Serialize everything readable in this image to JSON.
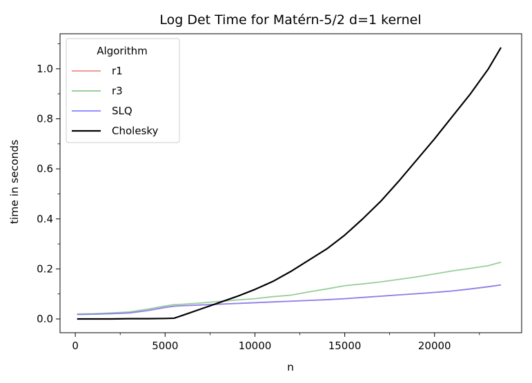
{
  "chart_data": {
    "type": "line",
    "title": "Log Det Time for Matérn-5/2 d=1 kernel",
    "xlabel": "n",
    "ylabel": "time in seconds",
    "xlim": [
      -850,
      24850
    ],
    "ylim": [
      -0.055,
      1.14
    ],
    "xticks": [
      0,
      5000,
      10000,
      15000,
      20000
    ],
    "yticks": [
      0.0,
      0.2,
      0.4,
      0.6,
      0.8,
      1.0
    ],
    "xticks_minor": [
      2500,
      7500,
      12500,
      17500,
      22500
    ],
    "yticks_minor": [
      0.1,
      0.3,
      0.5,
      0.7,
      0.9,
      1.1
    ],
    "grid": false,
    "legend": {
      "title": "Algorithm",
      "placement": "upper left"
    },
    "x": [
      100,
      1000,
      2000,
      3000,
      4000,
      5000,
      5500,
      6000,
      7000,
      8000,
      9000,
      10000,
      11000,
      12000,
      13000,
      14000,
      15000,
      16000,
      17000,
      18000,
      19000,
      20000,
      21000,
      22000,
      23000,
      23700
    ],
    "series": [
      {
        "name": "r1",
        "color": "#f08080",
        "values": [
          0.018,
          0.019,
          0.021,
          0.024,
          0.033,
          0.046,
          0.051,
          0.053,
          0.056,
          0.059,
          0.062,
          0.065,
          0.068,
          0.071,
          0.074,
          0.077,
          0.081,
          0.086,
          0.091,
          0.096,
          0.101,
          0.106,
          0.112,
          0.12,
          0.129,
          0.136
        ]
      },
      {
        "name": "r3",
        "color": "#80c080",
        "values": [
          0.02,
          0.021,
          0.024,
          0.028,
          0.039,
          0.052,
          0.057,
          0.059,
          0.064,
          0.07,
          0.076,
          0.081,
          0.089,
          0.095,
          0.108,
          0.12,
          0.133,
          0.14,
          0.148,
          0.158,
          0.168,
          0.18,
          0.192,
          0.202,
          0.213,
          0.227
        ]
      },
      {
        "name": "SLQ",
        "color": "#7b7bff",
        "values": [
          0.018,
          0.019,
          0.021,
          0.024,
          0.033,
          0.046,
          0.051,
          0.053,
          0.056,
          0.059,
          0.062,
          0.065,
          0.068,
          0.071,
          0.074,
          0.077,
          0.081,
          0.086,
          0.091,
          0.096,
          0.101,
          0.106,
          0.112,
          0.12,
          0.129,
          0.136
        ]
      },
      {
        "name": "Cholesky",
        "color": "#000000",
        "values": [
          0.0,
          0.0,
          0.0,
          0.001,
          0.001,
          0.002,
          0.003,
          0.015,
          0.04,
          0.065,
          0.09,
          0.118,
          0.15,
          0.19,
          0.235,
          0.28,
          0.335,
          0.4,
          0.47,
          0.55,
          0.635,
          0.72,
          0.81,
          0.9,
          1.0,
          1.085
        ]
      }
    ]
  }
}
